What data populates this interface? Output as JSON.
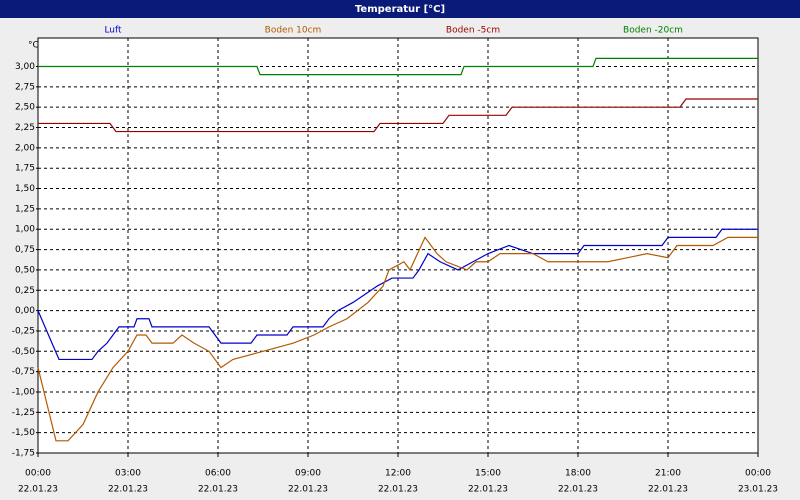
{
  "chart_data": {
    "type": "line",
    "title": "Temperatur [°C]",
    "y_unit": "°C",
    "xlim": [
      0,
      24
    ],
    "ylim": [
      -1.75,
      3.35
    ],
    "xticks": [
      {
        "value": 0,
        "label": "00:00"
      },
      {
        "value": 3,
        "label": "03:00"
      },
      {
        "value": 6,
        "label": "06:00"
      },
      {
        "value": 9,
        "label": "09:00"
      },
      {
        "value": 12,
        "label": "12:00"
      },
      {
        "value": 15,
        "label": "15:00"
      },
      {
        "value": 18,
        "label": "18:00"
      },
      {
        "value": 21,
        "label": "21:00"
      },
      {
        "value": 24,
        "label": "00:00"
      }
    ],
    "xtick_dates": [
      "22.01.23",
      "22.01.23",
      "22.01.23",
      "22.01.23",
      "22.01.23",
      "22.01.23",
      "22.01.23",
      "22.01.23",
      "23.01.23"
    ],
    "yticks": [
      {
        "value": -1.75,
        "label": "-1,75"
      },
      {
        "value": -1.5,
        "label": "-1,50"
      },
      {
        "value": -1.25,
        "label": "-1,25"
      },
      {
        "value": -1,
        "label": "-1,00"
      },
      {
        "value": -0.75,
        "label": "-0,75"
      },
      {
        "value": -0.5,
        "label": "-0,50"
      },
      {
        "value": -0.25,
        "label": "-0,25"
      },
      {
        "value": 0,
        "label": "0,00"
      },
      {
        "value": 0.25,
        "label": "0,25"
      },
      {
        "value": 0.5,
        "label": "0,50"
      },
      {
        "value": 0.75,
        "label": "0,75"
      },
      {
        "value": 1,
        "label": "1,00"
      },
      {
        "value": 1.25,
        "label": "1,25"
      },
      {
        "value": 1.5,
        "label": "1,50"
      },
      {
        "value": 1.75,
        "label": "1,75"
      },
      {
        "value": 2,
        "label": "2,00"
      },
      {
        "value": 2.25,
        "label": "2,25"
      },
      {
        "value": 2.5,
        "label": "2,50"
      },
      {
        "value": 2.75,
        "label": "2,75"
      },
      {
        "value": 3,
        "label": "3,00"
      }
    ],
    "grid": true,
    "series": [
      {
        "name": "Luft",
        "color": "#0000cc",
        "x": [
          0,
          0.7,
          1.8,
          2.0,
          2.3,
          2.7,
          3.2,
          3.3,
          3.7,
          3.8,
          5.7,
          5.9,
          6.1,
          7.1,
          7.3,
          8.3,
          8.5,
          9.5,
          9.7,
          10.0,
          10.5,
          10.9,
          11.3,
          11.8,
          12.5,
          12.7,
          13.0,
          13.4,
          14.0,
          14.5,
          15.0,
          15.7,
          16.5,
          18.0,
          18.2,
          20.8,
          21.0,
          22.6,
          22.8,
          24
        ],
        "values": [
          0,
          -0.6,
          -0.6,
          -0.5,
          -0.4,
          -0.2,
          -0.2,
          -0.1,
          -0.1,
          -0.2,
          -0.2,
          -0.3,
          -0.4,
          -0.4,
          -0.3,
          -0.3,
          -0.2,
          -0.2,
          -0.1,
          0,
          0.1,
          0.2,
          0.3,
          0.4,
          0.4,
          0.5,
          0.7,
          0.6,
          0.5,
          0.6,
          0.7,
          0.8,
          0.7,
          0.7,
          0.8,
          0.8,
          0.9,
          0.9,
          1.0,
          1.0
        ]
      },
      {
        "name": "Boden 10cm",
        "color": "#b35a00",
        "x": [
          0,
          0.6,
          1.0,
          1.5,
          2.0,
          2.5,
          3.0,
          3.3,
          3.6,
          3.8,
          4.5,
          4.8,
          5.2,
          5.7,
          6.1,
          6.5,
          7.5,
          8.5,
          9.2,
          9.7,
          10.3,
          11.0,
          11.5,
          11.7,
          12.2,
          12.4,
          12.9,
          13.3,
          13.6,
          14.3,
          14.6,
          15.0,
          15.4,
          16.5,
          17.0,
          19.0,
          20.3,
          21.0,
          21.3,
          22.5,
          23.0,
          24
        ],
        "values": [
          -0.7,
          -1.6,
          -1.6,
          -1.4,
          -1.0,
          -0.7,
          -0.5,
          -0.3,
          -0.3,
          -0.4,
          -0.4,
          -0.3,
          -0.4,
          -0.5,
          -0.7,
          -0.6,
          -0.5,
          -0.4,
          -0.3,
          -0.2,
          -0.1,
          0.1,
          0.3,
          0.5,
          0.6,
          0.5,
          0.9,
          0.7,
          0.6,
          0.5,
          0.6,
          0.6,
          0.7,
          0.7,
          0.6,
          0.6,
          0.7,
          0.65,
          0.8,
          0.8,
          0.9,
          0.9
        ]
      },
      {
        "name": "Boden -5cm",
        "color": "#990000",
        "x": [
          0,
          2.4,
          2.6,
          11.2,
          11.4,
          13.5,
          13.7,
          15.6,
          15.8,
          21.4,
          21.6,
          24
        ],
        "values": [
          2.3,
          2.3,
          2.2,
          2.2,
          2.3,
          2.3,
          2.4,
          2.4,
          2.5,
          2.5,
          2.6,
          2.6
        ]
      },
      {
        "name": "Boden -20cm",
        "color": "#008000",
        "x": [
          0,
          7.3,
          7.4,
          14.1,
          14.2,
          18.5,
          18.6,
          24
        ],
        "values": [
          3.0,
          3.0,
          2.9,
          2.9,
          3.0,
          3.0,
          3.1,
          3.1
        ]
      }
    ]
  }
}
